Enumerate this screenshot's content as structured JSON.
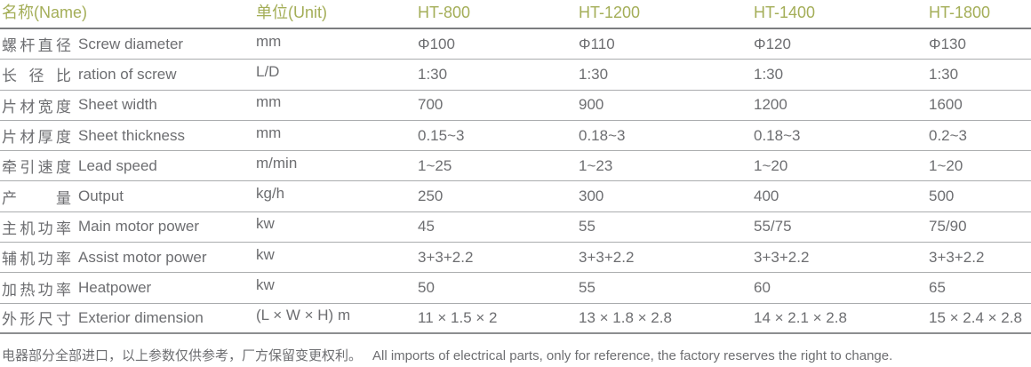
{
  "accent_color": "#a4ae58",
  "text_color": "#6d6e71",
  "header": {
    "name_label": "名称(Name)",
    "unit_label": "单位(Unit)",
    "models": [
      "HT-800",
      "HT-1200",
      "HT-1400",
      "HT-1800"
    ]
  },
  "table": {
    "rows": [
      {
        "cn": "螺杆直径",
        "en": "Screw diameter",
        "unit": "mm",
        "values": [
          "Φ100",
          "Φ110",
          "Φ120",
          "Φ130"
        ]
      },
      {
        "cn": "长 径 比",
        "en": "ration of screw",
        "unit": "L/D",
        "values": [
          "1:30",
          "1:30",
          "1:30",
          "1:30"
        ]
      },
      {
        "cn": "片材宽度",
        "en": "Sheet width",
        "unit": "mm",
        "values": [
          "700",
          "900",
          "1200",
          "1600"
        ]
      },
      {
        "cn": "片材厚度",
        "en": "Sheet thickness",
        "unit": "mm",
        "values": [
          "0.15~3",
          "0.18~3",
          "0.18~3",
          "0.2~3"
        ]
      },
      {
        "cn": "牵引速度",
        "en": "Lead speed",
        "unit": "m/min",
        "values": [
          "1~25",
          "1~23",
          "1~20",
          "1~20"
        ]
      },
      {
        "cn": "产 量",
        "en": "Output",
        "unit": "kg/h",
        "values": [
          "250",
          "300",
          "400",
          "500"
        ]
      },
      {
        "cn": "主机功率",
        "en": "Main motor power",
        "unit": "kw",
        "values": [
          "45",
          "55",
          "55/75",
          "75/90"
        ]
      },
      {
        "cn": "辅机功率",
        "en": "Assist motor power",
        "unit": "kw",
        "values": [
          "3+3+2.2",
          "3+3+2.2",
          "3+3+2.2",
          "3+3+2.2"
        ]
      },
      {
        "cn": "加热功率",
        "en": "Heatpower",
        "unit": "kw",
        "values": [
          "50",
          "55",
          "60",
          "65"
        ]
      },
      {
        "cn": "外形尺寸",
        "en": "Exterior dimension",
        "unit": "(L × W × H) m",
        "values": [
          "11 × 1.5 × 2",
          "13 × 1.8 × 2.8",
          "14 × 2.1 × 2.8",
          "15 × 2.4 × 2.8"
        ]
      }
    ]
  },
  "footnote": {
    "cn": "电器部分全部进口，以上参数仅供参考，厂方保留变更权利。",
    "en": "All imports of electrical parts, only for reference, the factory reserves the right to change."
  }
}
